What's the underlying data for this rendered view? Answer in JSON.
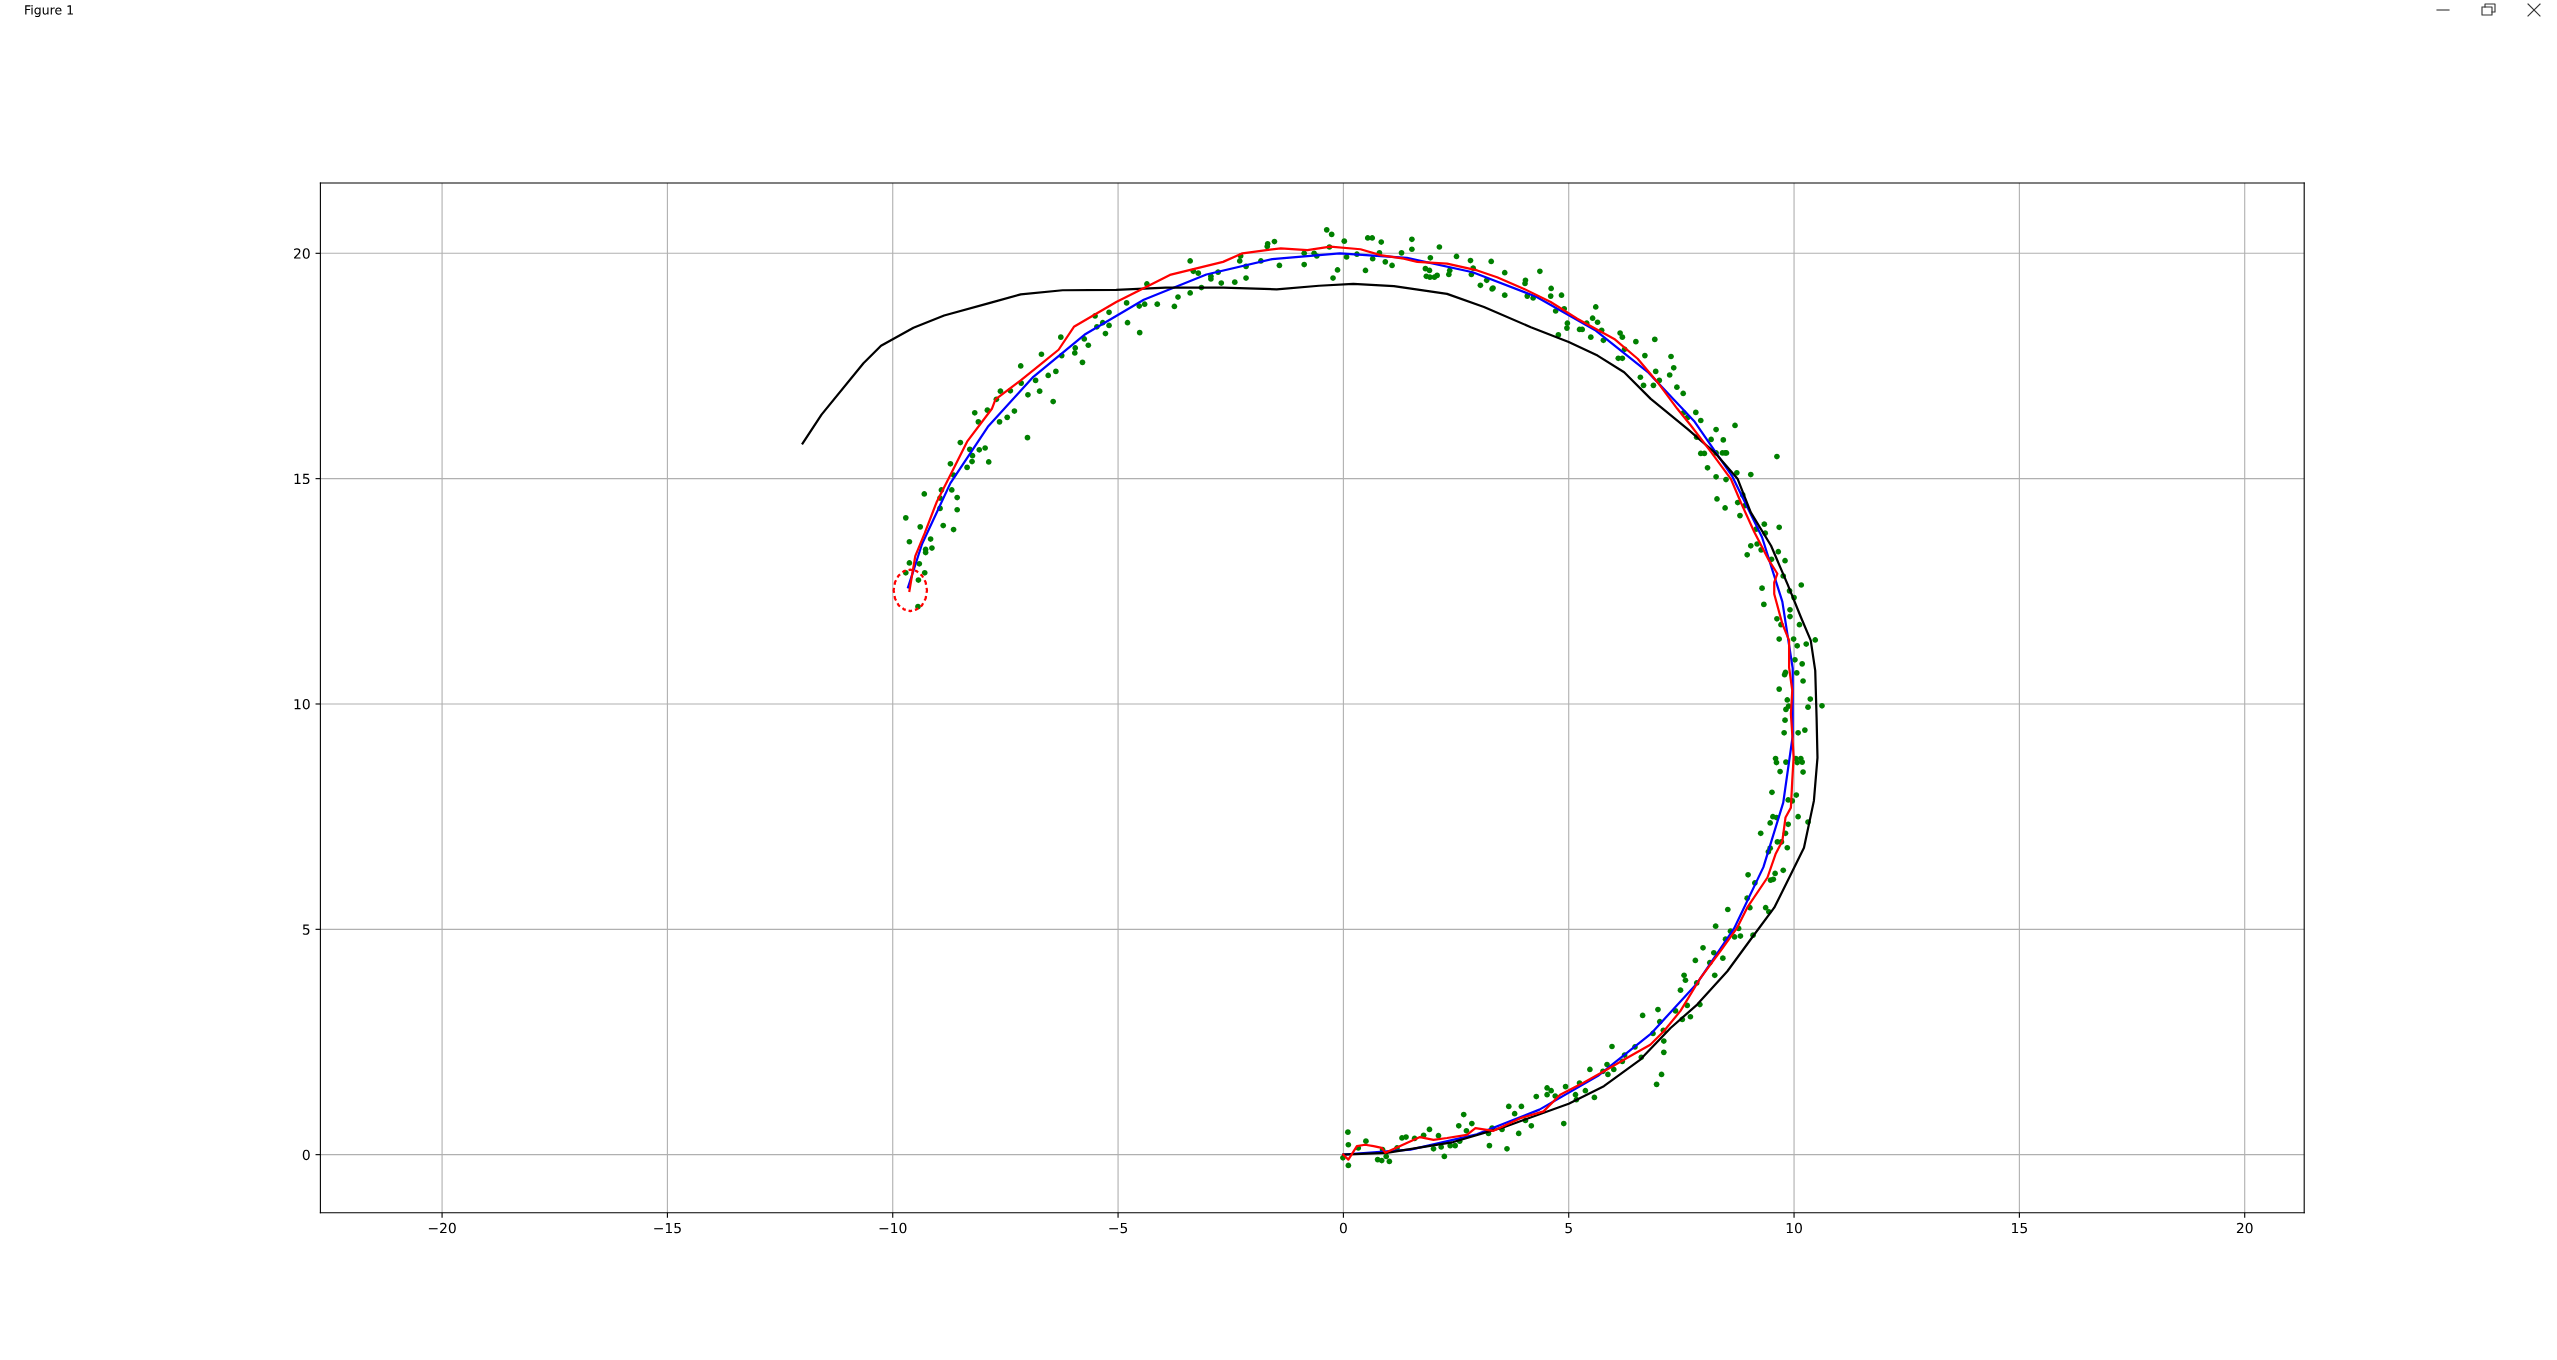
{
  "chart_data": {
    "type": "line",
    "xlim": [
      -22.7,
      21.32
    ],
    "ylim": [
      -1.29,
      21.56
    ],
    "xticks": [
      {
        "value": -20,
        "label": "−20"
      },
      {
        "value": -15,
        "label": "−15"
      },
      {
        "value": -10,
        "label": "−10"
      },
      {
        "value": -5,
        "label": "−5"
      },
      0,
      5,
      10,
      15,
      20
    ],
    "yticks": [
      0,
      5,
      10,
      15,
      20
    ],
    "grid": true,
    "annotations": [
      "Figure 1"
    ],
    "series": [
      {
        "type": "scatter",
        "color": "#008000",
        "marker": "circle",
        "x": [
          -0.01,
          0.1,
          0.11,
          0.11,
          0.33,
          0.5,
          0.76,
          0.85,
          0.87,
          0.95,
          1.02,
          1.19,
          1.3,
          1.39,
          1.58,
          1.78,
          1.91,
          2.0,
          2.11,
          2.17,
          2.24,
          2.37,
          2.48,
          2.56,
          2.58,
          2.67,
          2.73,
          2.85,
          3.22,
          3.24,
          3.3,
          3.52,
          3.63,
          3.67,
          3.8,
          3.89,
          3.95,
          4.04,
          4.17,
          4.28,
          4.52,
          4.52,
          4.61,
          4.7,
          4.89,
          4.93,
          5.15,
          5.17,
          5.24,
          5.37,
          5.47,
          5.57,
          5.76,
          5.85,
          5.87,
          5.96,
          6.0,
          6.19,
          6.24,
          6.47,
          6.61,
          6.64,
          6.87,
          6.95,
          6.98,
          7.02,
          7.06,
          7.1,
          7.11,
          7.11,
          7.37,
          7.48,
          7.52,
          7.56,
          7.59,
          7.63,
          7.7,
          7.84,
          7.81,
          7.91,
          7.98,
          8.13,
          8.22,
          8.24,
          8.42,
          8.48,
          8.59,
          8.68,
          8.77,
          8.81,
          9.09,
          8.26,
          8.53,
          8.96,
          9.02,
          9.37,
          9.44,
          8.98,
          9.13,
          9.48,
          9.54,
          9.58,
          9.76,
          9.43,
          9.47,
          9.63,
          9.72,
          9.85,
          9.26,
          9.47,
          9.81,
          9.87,
          9.53,
          9.61,
          10.09,
          10.31,
          9.51,
          10.05,
          9.87,
          9.96,
          9.69,
          10.2,
          9.59,
          9.61,
          9.82,
          10.04,
          10.15,
          10.18,
          10.07,
          9.78,
          10.09,
          10.24,
          9.8,
          9.82,
          9.88,
          9.85,
          10.31,
          10.36,
          10.62,
          9.67,
          10.2,
          9.79,
          9.81,
          10.06,
          10.02,
          10.18,
          9.67,
          9.99,
          10.07,
          10.27,
          10.47,
          9.62,
          9.71,
          9.91,
          9.91,
          10.12,
          9.33,
          10.0,
          9.29,
          9.76,
          9.9,
          10.16,
          9.65,
          9.8,
          9.5,
          8.96,
          9.04,
          9.18,
          9.27,
          9.36,
          9.67,
          9.16,
          9.34,
          8.8,
          8.75,
          8.91,
          8.47,
          8.29,
          8.86,
          9.62,
          9.04,
          8.73,
          8.49,
          8.27,
          8.08,
          8.47,
          8.5,
          8.41,
          7.93,
          8.01,
          8.27,
          8.43,
          8.16,
          7.84,
          8.69,
          8.27,
          7.82,
          7.93,
          7.64,
          7.55,
          7.54,
          7.4,
          7.24,
          7.33,
          7.27,
          6.93,
          7.01,
          6.88,
          6.66,
          6.59,
          6.69,
          6.91,
          6.49,
          6.24,
          6.14,
          6.19,
          6.1,
          6.19,
          5.77,
          5.73,
          5.49,
          5.53,
          5.64,
          5.6,
          5.4,
          5.24,
          5.3,
          4.97,
          4.96,
          4.77,
          4.9,
          4.71,
          4.84,
          4.6,
          4.61,
          4.36,
          4.21,
          4.08,
          4.04,
          4.03,
          3.58,
          3.58,
          3.3,
          3.32,
          3.18,
          3.04,
          3.28,
          2.88,
          2.84,
          2.82,
          2.51,
          2.36,
          2.34,
          2.13,
          2.08,
          2.02,
          1.93,
          1.92,
          1.84,
          1.82,
          1.91,
          1.52,
          1.52,
          1.29,
          1.08,
          0.93,
          0.84,
          0.8,
          0.64,
          0.65,
          0.54,
          0.49,
          0.3,
          0.07,
          0.02,
          -0.37,
          -0.26,
          -0.23,
          -0.13,
          -0.59,
          -0.31,
          -0.87,
          -0.87,
          -0.65,
          -1.42,
          -1.53,
          -1.69,
          -1.68,
          -1.83,
          -2.16,
          -2.16,
          -2.28,
          -2.3,
          -2.41,
          -2.71,
          -2.94,
          -2.78,
          -2.94,
          -3.15,
          -3.4,
          -3.33,
          -3.22,
          -3.4,
          -3.67,
          -3.75,
          -4.13,
          -4.36,
          -4.41,
          -4.53,
          -4.79,
          -4.81,
          -4.52,
          -5.2,
          -5.28,
          -5.2,
          -5.34,
          -5.51,
          -5.47,
          -5.66,
          -5.75,
          -5.79,
          -5.96,
          -5.95,
          -6.27,
          -6.25,
          -6.38,
          -6.44,
          -6.55,
          -6.7,
          -6.74,
          -6.83,
          -7.0,
          -7.01,
          -7.16,
          -7.15,
          -7.3,
          -7.39,
          -7.46,
          -7.61,
          -7.63,
          -7.7,
          -7.87,
          -7.9,
          -7.95,
          -8.08,
          -8.1,
          -8.18,
          -8.23,
          -8.24,
          -8.29,
          -8.35,
          -8.5,
          -8.57,
          -8.57,
          -8.65,
          -8.69,
          -8.72,
          -8.65,
          -8.88,
          -8.92,
          -8.95,
          -8.95,
          -9.13,
          -9.16,
          -9.27,
          -9.27,
          -9.3,
          -9.39,
          -9.41,
          -9.43,
          -9.29,
          -9.63,
          -9.63,
          -9.71,
          -9.71,
          -9.44
        ],
        "values": [
          -0.07,
          0.5,
          0.22,
          -0.24,
          0.15,
          0.3,
          -0.11,
          -0.13,
          0.11,
          -0.04,
          -0.15,
          0.15,
          0.37,
          0.39,
          0.36,
          0.43,
          0.56,
          0.13,
          0.42,
          0.17,
          -0.04,
          0.2,
          0.2,
          0.64,
          0.3,
          0.89,
          0.53,
          0.69,
          0.47,
          0.2,
          0.59,
          0.56,
          0.13,
          1.07,
          0.91,
          0.47,
          1.07,
          0.76,
          0.64,
          1.29,
          1.48,
          1.33,
          1.42,
          1.3,
          0.69,
          1.51,
          1.33,
          1.22,
          1.59,
          1.42,
          1.89,
          1.27,
          1.85,
          2.0,
          1.78,
          2.4,
          1.89,
          2.07,
          2.21,
          2.39,
          2.16,
          3.09,
          2.69,
          1.56,
          3.22,
          2.95,
          1.78,
          2.76,
          2.52,
          2.27,
          3.19,
          3.65,
          3.0,
          3.98,
          3.87,
          3.31,
          3.06,
          3.81,
          4.31,
          3.33,
          4.59,
          4.26,
          4.48,
          3.98,
          4.36,
          4.78,
          4.96,
          4.83,
          5.02,
          4.85,
          4.87,
          5.07,
          5.44,
          5.69,
          5.48,
          5.48,
          5.39,
          6.21,
          6.03,
          6.09,
          6.11,
          6.24,
          6.31,
          6.72,
          6.8,
          6.94,
          6.94,
          6.81,
          7.13,
          7.36,
          7.13,
          7.33,
          7.5,
          7.48,
          7.5,
          7.38,
          8.04,
          7.98,
          7.87,
          7.85,
          8.5,
          8.49,
          8.79,
          8.7,
          8.71,
          8.79,
          8.79,
          8.71,
          8.7,
          9.36,
          9.36,
          9.42,
          9.64,
          9.88,
          9.95,
          10.09,
          9.93,
          10.11,
          9.96,
          10.33,
          10.51,
          10.65,
          10.7,
          10.69,
          10.98,
          10.89,
          11.44,
          11.44,
          11.29,
          11.33,
          11.42,
          11.89,
          11.76,
          11.94,
          12.09,
          11.76,
          12.21,
          12.36,
          12.57,
          12.84,
          12.51,
          12.64,
          13.38,
          13.18,
          13.21,
          13.31,
          13.51,
          13.55,
          13.42,
          13.79,
          13.92,
          13.88,
          13.99,
          14.18,
          14.47,
          14.4,
          14.35,
          14.55,
          14.64,
          15.49,
          15.09,
          15.13,
          14.98,
          15.04,
          15.24,
          15.57,
          15.57,
          15.57,
          15.56,
          15.56,
          15.57,
          15.86,
          15.87,
          15.92,
          16.18,
          16.09,
          16.47,
          16.29,
          16.36,
          16.46,
          16.89,
          17.03,
          17.3,
          17.46,
          17.71,
          17.38,
          17.18,
          17.07,
          17.07,
          17.25,
          17.73,
          18.09,
          18.04,
          17.87,
          18.23,
          18.14,
          17.67,
          17.67,
          18.07,
          18.29,
          18.14,
          18.56,
          18.47,
          18.81,
          18.45,
          18.31,
          18.31,
          18.45,
          18.34,
          18.19,
          18.77,
          18.72,
          19.07,
          19.05,
          19.22,
          19.6,
          19.01,
          19.05,
          19.4,
          19.33,
          19.07,
          19.57,
          19.21,
          19.23,
          19.4,
          19.29,
          19.82,
          19.67,
          19.53,
          19.84,
          19.93,
          19.62,
          19.53,
          20.14,
          19.51,
          19.47,
          19.9,
          19.47,
          19.49,
          19.66,
          19.62,
          20.31,
          20.09,
          20.01,
          19.73,
          19.81,
          20.25,
          20.01,
          20.34,
          19.88,
          20.34,
          19.62,
          19.98,
          19.92,
          20.27,
          20.52,
          20.42,
          19.45,
          19.63,
          19.94,
          20.14,
          20.0,
          19.75,
          20.0,
          19.73,
          20.26,
          20.15,
          20.21,
          19.83,
          19.45,
          19.71,
          19.94,
          19.83,
          19.36,
          19.34,
          19.43,
          19.58,
          19.49,
          19.24,
          19.83,
          19.6,
          19.56,
          19.12,
          19.03,
          18.82,
          18.87,
          19.32,
          18.87,
          18.83,
          18.46,
          18.9,
          18.24,
          18.4,
          18.22,
          18.69,
          18.46,
          18.61,
          18.37,
          17.96,
          18.1,
          17.58,
          17.79,
          17.9,
          18.14,
          17.73,
          17.38,
          16.71,
          17.29,
          17.76,
          16.94,
          17.18,
          16.86,
          15.91,
          17.5,
          17.12,
          16.5,
          16.95,
          16.36,
          16.94,
          16.26,
          16.76,
          15.37,
          16.52,
          15.68,
          15.64,
          16.26,
          16.46,
          15.51,
          15.38,
          15.65,
          15.25,
          15.8,
          14.58,
          14.31,
          15.08,
          14.75,
          15.33,
          13.87,
          13.96,
          14.75,
          14.34,
          14.57,
          13.46,
          13.66,
          13.36,
          13.43,
          14.66,
          13.93,
          13.11,
          12.75,
          12.91,
          13.6,
          13.13,
          14.13,
          12.91,
          12.16
        ]
      },
      {
        "type": "line",
        "color": "#0000ff",
        "x": [
          0,
          1.49,
          2.96,
          4.35,
          5.65,
          6.82,
          7.83,
          8.67,
          9.32,
          9.76,
          9.97,
          9.97,
          9.74,
          9.29,
          8.63,
          7.78,
          6.75,
          5.58,
          4.27,
          2.87,
          1.41,
          -0.08,
          -1.58,
          -3.04,
          -4.43,
          -5.72,
          -6.88,
          -7.89,
          -8.72,
          -9.35,
          -9.66
        ],
        "values": [
          0,
          0.11,
          0.45,
          1.0,
          1.75,
          2.68,
          3.78,
          5.02,
          6.38,
          7.81,
          9.29,
          10.79,
          12.27,
          13.7,
          15.05,
          16.28,
          17.37,
          18.3,
          19.04,
          19.58,
          19.9,
          20.0,
          19.87,
          19.53,
          18.97,
          18.21,
          17.26,
          16.15,
          14.9,
          13.55,
          12.59
        ]
      },
      {
        "type": "line",
        "color": "#000000",
        "x": [
          0,
          0.96,
          2.44,
          3.56,
          5.0,
          5.78,
          6.59,
          7.26,
          7.85,
          8.52,
          9.04,
          9.56,
          9.93,
          10.22,
          10.44,
          10.52,
          10.5,
          10.47,
          10.37,
          10.15,
          9.85,
          9.49,
          9.04,
          8.75,
          8.23,
          7.64,
          6.82,
          6.23,
          5.64,
          5.0,
          4.16,
          3.12,
          2.3,
          1.12,
          0.22,
          -0.54,
          -1.48,
          -2.67,
          -3.94,
          -5.04,
          -6.23,
          -7.16,
          -7.84,
          -8.86,
          -9.54,
          -10.26,
          -10.65,
          -11.58,
          -12.0
        ],
        "values": [
          0,
          0.04,
          0.28,
          0.61,
          1.13,
          1.52,
          2.11,
          2.81,
          3.33,
          4.07,
          4.78,
          5.48,
          6.22,
          6.81,
          7.85,
          8.81,
          9.7,
          10.74,
          11.41,
          11.93,
          12.67,
          13.51,
          14.25,
          14.99,
          15.59,
          16.1,
          16.77,
          17.36,
          17.73,
          18.03,
          18.36,
          18.81,
          19.1,
          19.27,
          19.32,
          19.28,
          19.2,
          19.24,
          19.24,
          19.19,
          19.18,
          19.09,
          18.9,
          18.62,
          18.35,
          17.95,
          17.56,
          16.42,
          15.78
        ]
      },
      {
        "type": "line",
        "color": "#ff0000",
        "x": [
          0,
          0.11,
          0.3,
          0.48,
          0.67,
          0.85,
          0.93,
          1.26,
          1.7,
          2.0,
          2.3,
          2.74,
          2.93,
          3.33,
          3.93,
          4.44,
          4.81,
          5.26,
          5.85,
          6.3,
          6.81,
          7.11,
          7.48,
          7.93,
          8.37,
          8.74,
          8.96,
          9.41,
          9.59,
          9.74,
          9.81,
          9.93,
          9.96,
          9.99,
          9.96,
          9.93,
          9.96,
          9.89,
          9.89,
          9.74,
          9.56,
          9.56,
          9.63,
          9.44,
          9.12,
          8.82,
          8.6,
          8.38,
          8.16,
          7.71,
          7.41,
          6.97,
          6.53,
          6.01,
          5.19,
          4.6,
          4.01,
          3.41,
          2.97,
          2.3,
          1.64,
          1.34,
          0.82,
          0.38,
          -0.29,
          -0.8,
          -1.39,
          -2.24,
          -2.67,
          -3.85,
          -4.62,
          -5.04,
          -5.98,
          -6.32,
          -6.74,
          -7.16,
          -7.72,
          -7.8,
          -8.35,
          -8.69,
          -9.03,
          -9.29,
          -9.5,
          -9.63
        ],
        "values": [
          0,
          -0.11,
          0.19,
          0.22,
          0.19,
          0.15,
          0.04,
          0.19,
          0.39,
          0.33,
          0.37,
          0.44,
          0.59,
          0.53,
          0.81,
          0.96,
          1.33,
          1.56,
          1.89,
          2.15,
          2.44,
          2.74,
          3.19,
          3.93,
          4.52,
          5.04,
          5.48,
          6.15,
          6.67,
          6.96,
          7.48,
          7.7,
          8.3,
          8.81,
          9.33,
          9.78,
          10.3,
          10.81,
          11.41,
          11.78,
          12.44,
          12.7,
          12.89,
          13.19,
          13.81,
          14.47,
          14.99,
          15.29,
          15.59,
          16.18,
          16.55,
          17.14,
          17.66,
          18.1,
          18.55,
          18.92,
          19.21,
          19.47,
          19.62,
          19.77,
          19.81,
          19.88,
          19.96,
          20.09,
          20.15,
          20.07,
          20.11,
          20.0,
          19.81,
          19.52,
          19.13,
          18.92,
          18.37,
          17.86,
          17.52,
          17.18,
          16.76,
          16.55,
          15.82,
          15.14,
          14.47,
          13.79,
          13.28,
          12.51
        ]
      },
      {
        "type": "line",
        "color": "#ff0000",
        "line_style": "dashed",
        "x": [
          -9.24,
          -9.27,
          -9.35,
          -9.47,
          -9.61,
          -9.75,
          -9.87,
          -9.95,
          -9.98,
          -9.95,
          -9.87,
          -9.75,
          -9.61,
          -9.47,
          -9.35,
          -9.27,
          -9.24,
          -9.27
        ],
        "values": [
          12.52,
          12.7,
          12.85,
          12.95,
          12.98,
          12.95,
          12.85,
          12.7,
          12.52,
          12.34,
          12.19,
          12.1,
          12.06,
          12.1,
          12.19,
          12.34,
          12.52,
          12.7
        ]
      }
    ]
  }
}
